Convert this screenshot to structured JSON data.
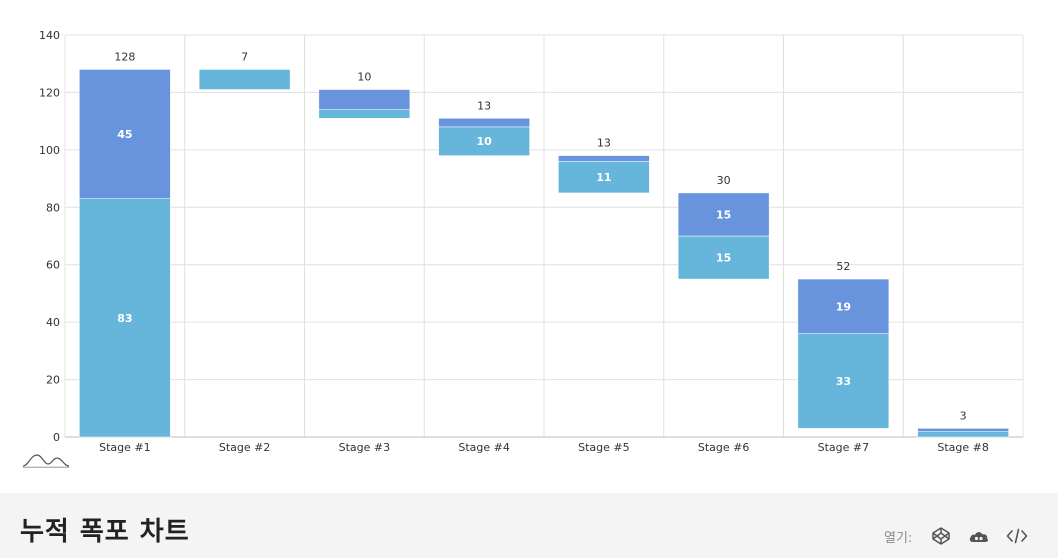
{
  "chart_data": {
    "type": "bar",
    "subtype": "stacked-waterfall",
    "categories": [
      "Stage #1",
      "Stage #2",
      "Stage #3",
      "Stage #4",
      "Stage #5",
      "Stage #6",
      "Stage #7",
      "Stage #8"
    ],
    "series": [
      {
        "color": "#66b6dc",
        "values": [
          83,
          7,
          3,
          10,
          11,
          15,
          33,
          2
        ]
      },
      {
        "color": "#6794dc",
        "values": [
          45,
          0,
          7,
          3,
          2,
          15,
          19,
          1
        ]
      }
    ],
    "bases": [
      0,
      121,
      111,
      98,
      85,
      55,
      3,
      0
    ],
    "totals": [
      "128",
      "7",
      "10",
      "13",
      "13",
      "30",
      "52",
      "3"
    ],
    "inside_labels": [
      {
        "stage": 0,
        "series": 0,
        "text": "83"
      },
      {
        "stage": 0,
        "series": 1,
        "text": "45"
      },
      {
        "stage": 3,
        "series": 0,
        "text": "10"
      },
      {
        "stage": 4,
        "series": 0,
        "text": "11"
      },
      {
        "stage": 5,
        "series": 0,
        "text": "15"
      },
      {
        "stage": 5,
        "series": 1,
        "text": "15"
      },
      {
        "stage": 6,
        "series": 0,
        "text": "33"
      },
      {
        "stage": 6,
        "series": 1,
        "text": "19"
      }
    ],
    "ylim": [
      0,
      140
    ],
    "yticks": [
      0,
      20,
      40,
      60,
      80,
      100,
      120,
      140
    ],
    "grid": true,
    "legend": "none"
  },
  "footer": {
    "title": "누적 폭포 차트",
    "open_label": "열기:",
    "icons": [
      "codepen-icon",
      "cloud-icon",
      "code-icon"
    ]
  }
}
